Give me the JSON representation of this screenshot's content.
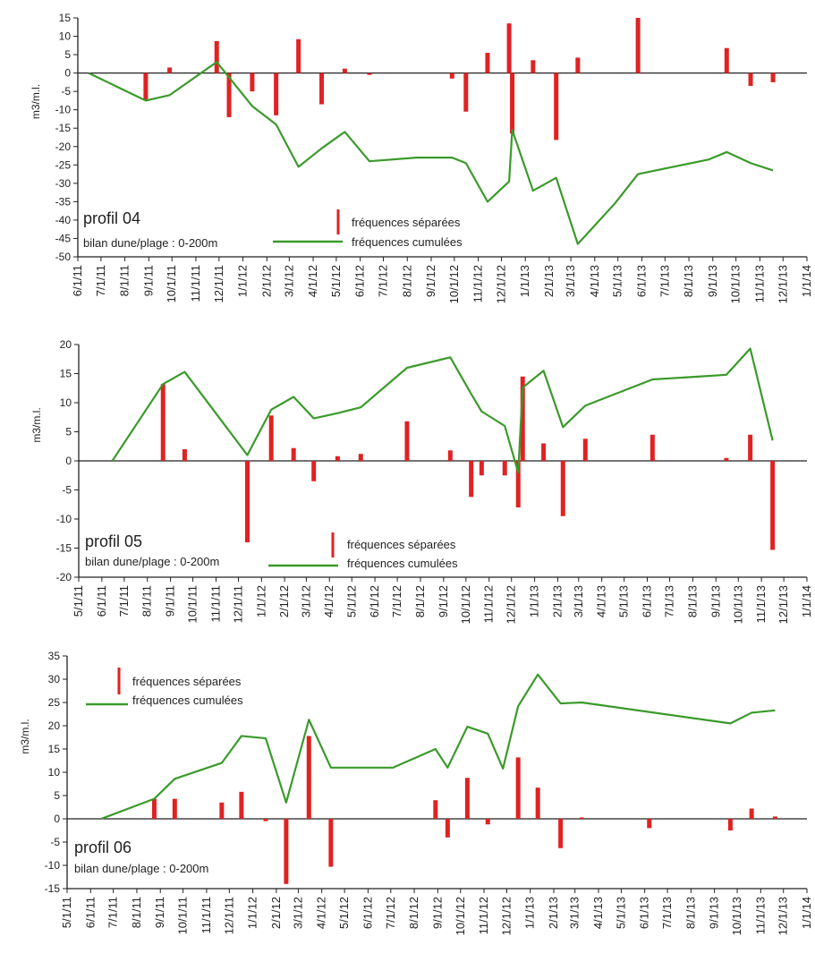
{
  "colors": {
    "bar": "#e02222",
    "line": "#3a9a2a",
    "axis": "#222222"
  },
  "chart_data": [
    {
      "type": "bar",
      "panel_label": "profil 04",
      "subtitle": "bilan dune/plage : 0-200m",
      "ylabel": "m3/m.l.",
      "ylim": [
        -50,
        15
      ],
      "yticks": [
        15,
        10,
        5,
        0,
        -5,
        -10,
        -15,
        -20,
        -25,
        -30,
        -35,
        -40,
        -45,
        -50
      ],
      "xlim": [
        "2011-06-01",
        "2014-01-01"
      ],
      "xtick_labels": [
        "6/1/11",
        "7/1/11",
        "8/1/11",
        "9/1/11",
        "10/1/11",
        "11/1/11",
        "12/1/11",
        "1/1/12",
        "2/1/12",
        "3/1/12",
        "4/1/12",
        "5/1/12",
        "6/1/12",
        "7/1/12",
        "8/1/12",
        "9/1/12",
        "10/1/12",
        "11/1/12",
        "12/1/12",
        "1/1/13",
        "2/1/13",
        "3/1/13",
        "4/1/13",
        "5/1/13",
        "6/1/13",
        "7/1/13",
        "8/1/13",
        "9/1/13",
        "10/1/13",
        "11/1/13",
        "12/1/13",
        "1/1/14"
      ],
      "legend": {
        "position": "bottom-center",
        "entries": [
          "fréquences séparées",
          "fréquences cumulées"
        ]
      },
      "series": [
        {
          "name": "fréquences séparées",
          "kind": "bar",
          "x": [
            "2011-08-28",
            "2011-09-28",
            "2011-11-28",
            "2011-12-14",
            "2012-01-13",
            "2012-02-13",
            "2012-03-13",
            "2012-04-12",
            "2012-05-12",
            "2012-06-13",
            "2012-09-28",
            "2012-10-16",
            "2012-11-13",
            "2012-12-11",
            "2012-12-15",
            "2013-01-11",
            "2013-02-10",
            "2013-03-10",
            "2013-05-27",
            "2013-09-19",
            "2013-10-20",
            "2013-11-18"
          ],
          "y": [
            -7.5,
            1.5,
            8.7,
            -12,
            -5,
            -11.5,
            9.2,
            -8.5,
            1.2,
            -0.5,
            -1.5,
            -10.5,
            5.5,
            13.5,
            -16.5,
            3.5,
            -18.2,
            4.2,
            15,
            6.8,
            -3.5,
            -2.5
          ]
        },
        {
          "name": "fréquences cumulées",
          "kind": "line",
          "x": [
            "2011-06-15",
            "2011-08-28",
            "2011-09-28",
            "2011-11-28",
            "2012-01-13",
            "2012-02-13",
            "2012-03-13",
            "2012-04-12",
            "2012-05-12",
            "2012-06-13",
            "2012-08-13",
            "2012-09-12",
            "2012-09-28",
            "2012-10-16",
            "2012-11-13",
            "2012-12-11",
            "2012-12-15",
            "2013-01-11",
            "2013-02-10",
            "2013-03-10",
            "2013-04-27",
            "2013-05-27",
            "2013-08-27",
            "2013-09-19",
            "2013-10-20",
            "2013-11-18"
          ],
          "y": [
            0,
            -7.5,
            -6,
            3,
            -9,
            -14,
            -25.5,
            -20.5,
            -16,
            -24,
            -23,
            -23,
            -23,
            -24.5,
            -35,
            -29.5,
            -15.5,
            -32,
            -28.5,
            -46.5,
            -35.5,
            -27.5,
            -23.5,
            -21.5,
            -24.5,
            -26.5
          ]
        }
      ]
    },
    {
      "type": "bar",
      "panel_label": "profil 05",
      "subtitle": "bilan dune/plage : 0-200m",
      "ylabel": "m3/m.l.",
      "ylim": [
        -20,
        20
      ],
      "yticks": [
        20,
        15,
        10,
        5,
        0,
        -5,
        -10,
        -15,
        -20
      ],
      "xlim": [
        "2011-05-01",
        "2014-01-01"
      ],
      "xtick_labels": [
        "5/1/11",
        "6/1/11",
        "7/1/11",
        "8/1/11",
        "9/1/11",
        "10/1/11",
        "11/1/11",
        "12/1/11",
        "1/1/12",
        "2/1/12",
        "3/1/12",
        "4/1/12",
        "5/1/12",
        "6/1/12",
        "7/1/12",
        "8/1/12",
        "9/1/12",
        "10/1/12",
        "11/1/12",
        "12/1/12",
        "1/1/13",
        "2/1/13",
        "3/1/13",
        "4/1/13",
        "5/1/13",
        "6/1/13",
        "7/1/13",
        "8/1/13",
        "9/1/13",
        "10/1/13",
        "11/1/13",
        "12/1/13",
        "1/1/14"
      ],
      "legend": {
        "position": "bottom-center",
        "entries": [
          "fréquences séparées",
          "fréquences cumulées"
        ]
      },
      "series": [
        {
          "name": "fréquences séparées",
          "kind": "bar",
          "x": [
            "2011-08-22",
            "2011-09-20",
            "2011-12-13",
            "2012-01-14",
            "2012-02-13",
            "2012-03-11",
            "2012-04-12",
            "2012-05-13",
            "2012-07-14",
            "2012-09-10",
            "2012-10-08",
            "2012-10-22",
            "2012-11-22",
            "2012-12-10",
            "2012-12-16",
            "2013-01-13",
            "2013-02-08",
            "2013-03-10",
            "2013-06-08",
            "2013-09-15",
            "2013-10-17",
            "2013-11-16"
          ],
          "y": [
            13.2,
            2,
            -14,
            7.8,
            2.2,
            -3.5,
            0.8,
            1.2,
            6.8,
            1.8,
            -6.2,
            -2.5,
            -2.5,
            -8,
            14.5,
            3,
            -9.5,
            3.8,
            4.5,
            0.5,
            4.5,
            -15.3
          ]
        },
        {
          "name": "fréquences cumulées",
          "kind": "line",
          "x": [
            "2011-06-15",
            "2011-08-22",
            "2011-09-20",
            "2011-12-13",
            "2012-01-14",
            "2012-02-13",
            "2012-03-11",
            "2012-04-12",
            "2012-05-13",
            "2012-07-14",
            "2012-09-10",
            "2012-10-08",
            "2012-10-22",
            "2012-11-22",
            "2012-12-10",
            "2012-12-16",
            "2013-01-13",
            "2013-02-08",
            "2013-03-10",
            "2013-06-08",
            "2013-08-10",
            "2013-09-15",
            "2013-10-17",
            "2013-11-16"
          ],
          "y": [
            0,
            13.2,
            15.3,
            1,
            8.8,
            11,
            7.3,
            8.2,
            9.2,
            16,
            17.8,
            11.5,
            8.5,
            6,
            -2,
            12.6,
            15.5,
            5.8,
            9.5,
            14,
            14.5,
            14.8,
            19.3,
            3.5
          ]
        }
      ]
    },
    {
      "type": "bar",
      "panel_label": "profil 06",
      "subtitle": "bilan dune/plage : 0-200m",
      "ylabel": "m3/m.l.",
      "ylim": [
        -15,
        35
      ],
      "yticks": [
        35,
        30,
        25,
        20,
        15,
        10,
        5,
        0,
        -5,
        -10,
        -15
      ],
      "xlim": [
        "2011-05-01",
        "2014-01-01"
      ],
      "xtick_labels": [
        "5/1/11",
        "6/1/11",
        "7/1/11",
        "8/1/11",
        "9/1/11",
        "10/1/11",
        "11/1/11",
        "12/1/11",
        "1/1/12",
        "2/1/12",
        "3/1/12",
        "4/1/12",
        "5/1/12",
        "6/1/12",
        "7/1/12",
        "8/1/12",
        "9/1/12",
        "10/1/12",
        "11/1/12",
        "12/1/12",
        "1/1/13",
        "2/1/13",
        "3/1/13",
        "4/1/13",
        "5/1/13",
        "6/1/13",
        "7/1/13",
        "8/1/13",
        "9/1/13",
        "10/1/13",
        "11/1/13",
        "12/1/13",
        "1/1/14"
      ],
      "legend": {
        "position": "top-left",
        "entries": [
          "fréquences séparées",
          "fréquences cumulées"
        ]
      },
      "series": [
        {
          "name": "fréquences séparées",
          "kind": "bar",
          "x": [
            "2011-08-24",
            "2011-09-20",
            "2011-11-21",
            "2011-12-17",
            "2012-01-18",
            "2012-02-14",
            "2012-03-15",
            "2012-04-13",
            "2012-08-29",
            "2012-09-14",
            "2012-10-10",
            "2012-11-06",
            "2012-12-16",
            "2013-01-11",
            "2013-02-10",
            "2013-03-10",
            "2013-06-07",
            "2013-09-22",
            "2013-10-20",
            "2013-11-20"
          ],
          "y": [
            4.3,
            4.3,
            3.5,
            5.8,
            -0.5,
            -14,
            17.8,
            -10.3,
            4,
            -4,
            8.8,
            -1.2,
            13.2,
            6.7,
            -6.3,
            0.3,
            -2,
            -2.5,
            2.2,
            0.5
          ]
        },
        {
          "name": "fréquences cumulées",
          "kind": "line",
          "x": [
            "2011-06-15",
            "2011-08-24",
            "2011-09-20",
            "2011-11-21",
            "2011-12-17",
            "2012-01-18",
            "2012-02-14",
            "2012-03-15",
            "2012-04-13",
            "2012-05-10",
            "2012-07-04",
            "2012-08-29",
            "2012-09-14",
            "2012-10-10",
            "2012-11-06",
            "2012-11-26",
            "2012-12-16",
            "2013-01-11",
            "2013-02-10",
            "2013-03-10",
            "2013-09-22",
            "2013-10-20",
            "2013-11-20"
          ],
          "y": [
            0,
            4.3,
            8.6,
            12,
            17.8,
            17.3,
            3.5,
            21.3,
            11,
            11,
            11,
            15,
            11,
            19.8,
            18.3,
            10.8,
            24.2,
            31,
            24.8,
            25,
            20.5,
            22.8,
            23.3
          ]
        }
      ]
    }
  ]
}
